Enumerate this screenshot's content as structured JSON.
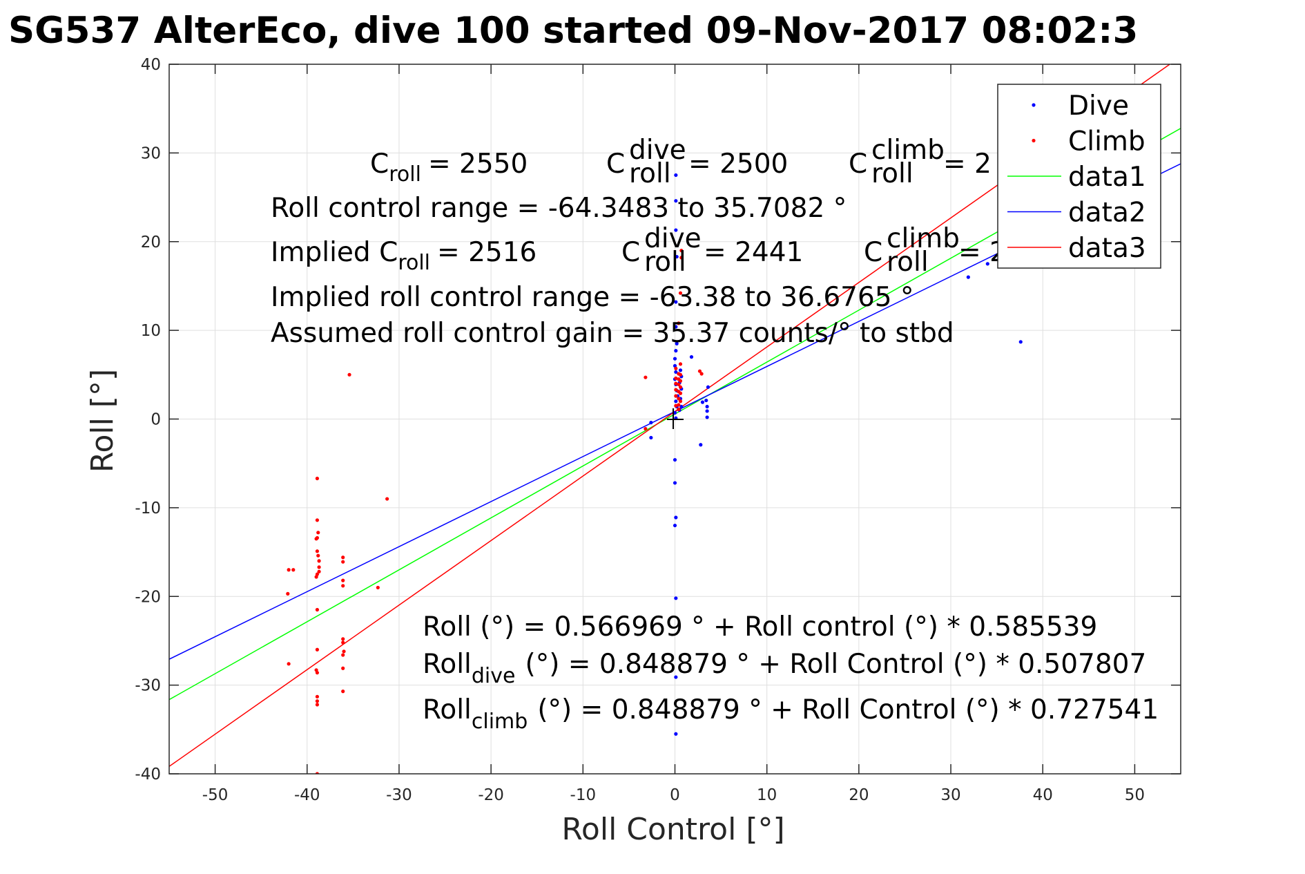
{
  "chart_data": {
    "type": "scatter",
    "title": "SG537 AlterEco, dive 100 started 09-Nov-2017 08:02:3",
    "xlabel": "Roll Control [°]",
    "ylabel": "Roll [°]",
    "xlim": [
      -55,
      55
    ],
    "ylim": [
      -40,
      40
    ],
    "xticks": [
      -50,
      -40,
      -30,
      -20,
      -10,
      0,
      10,
      20,
      30,
      40,
      50
    ],
    "yticks": [
      -40,
      -30,
      -20,
      -10,
      0,
      10,
      20,
      30,
      40
    ],
    "xtick_labels": [
      "-50",
      "-40",
      "-30",
      "-20",
      "-10",
      "0",
      "10",
      "20",
      "30",
      "40",
      "50"
    ],
    "ytick_labels": [
      "-40",
      "-30",
      "-20",
      "-10",
      "0",
      "10",
      "20",
      "30",
      "40"
    ],
    "grid": true,
    "legend_position": "top-right",
    "series": [
      {
        "name": "Dive",
        "kind": "points",
        "color": "#0000ff",
        "points": [
          [
            0.1,
            27.5
          ],
          [
            0.1,
            24.6
          ],
          [
            0.1,
            21.3
          ],
          [
            0.2,
            18.3
          ],
          [
            0.1,
            13.2
          ],
          [
            0.1,
            10.4
          ],
          [
            0.2,
            8.5
          ],
          [
            0.1,
            7.7
          ],
          [
            0.0,
            6.8
          ],
          [
            0.0,
            6.0
          ],
          [
            0.1,
            5.3
          ],
          [
            0.0,
            4.5
          ],
          [
            0.1,
            3.9
          ],
          [
            0.2,
            3.2
          ],
          [
            0.3,
            2.6
          ],
          [
            0.1,
            2.0
          ],
          [
            0.2,
            1.4
          ],
          [
            0.0,
            0.7
          ],
          [
            0.1,
            0.1
          ],
          [
            0.0,
            -4.6
          ],
          [
            0.0,
            -7.2
          ],
          [
            0.1,
            -11.1
          ],
          [
            0.0,
            -12.0
          ],
          [
            0.1,
            -20.2
          ],
          [
            0.1,
            -29.1
          ],
          [
            0.1,
            -35.5
          ],
          [
            0.6,
            5.5
          ],
          [
            0.7,
            4.8
          ],
          [
            0.5,
            4.1
          ],
          [
            0.7,
            3.4
          ],
          [
            0.6,
            2.3
          ],
          [
            0.7,
            1.4
          ],
          [
            0.5,
            1.0
          ],
          [
            1.8,
            7.0
          ],
          [
            3.6,
            3.6
          ],
          [
            3.4,
            2.1
          ],
          [
            3.5,
            1.4
          ],
          [
            3.5,
            0.9
          ],
          [
            3.5,
            0.2
          ],
          [
            3.0,
            1.9
          ],
          [
            2.8,
            -2.9
          ],
          [
            -2.6,
            -0.4
          ],
          [
            -2.6,
            -2.1
          ],
          [
            31.9,
            16.0
          ],
          [
            34.0,
            17.5
          ],
          [
            37.6,
            8.7
          ]
        ]
      },
      {
        "name": "Climb",
        "kind": "points",
        "color": "#ff0000",
        "points": [
          [
            -38.9,
            -6.7
          ],
          [
            -38.9,
            -11.4
          ],
          [
            -38.8,
            -12.8
          ],
          [
            -38.9,
            -13.4
          ],
          [
            -39.0,
            -13.5
          ],
          [
            -38.9,
            -14.9
          ],
          [
            -38.8,
            -15.4
          ],
          [
            -38.7,
            -16.0
          ],
          [
            -38.7,
            -16.7
          ],
          [
            -38.7,
            -17.2
          ],
          [
            -38.9,
            -17.5
          ],
          [
            -39.0,
            -17.8
          ],
          [
            -38.9,
            -21.5
          ],
          [
            -38.9,
            -26.0
          ],
          [
            -39.0,
            -28.3
          ],
          [
            -38.9,
            -28.6
          ],
          [
            -38.9,
            -31.3
          ],
          [
            -38.9,
            -31.8
          ],
          [
            -38.9,
            -32.2
          ],
          [
            -38.9,
            -40.0
          ],
          [
            -42.0,
            -17.0
          ],
          [
            -41.5,
            -17.0
          ],
          [
            -42.1,
            -19.7
          ],
          [
            -42.0,
            -27.6
          ],
          [
            -36.1,
            -15.6
          ],
          [
            -36.1,
            -16.1
          ],
          [
            -36.1,
            -18.2
          ],
          [
            -36.1,
            -18.8
          ],
          [
            -36.1,
            -24.8
          ],
          [
            -36.1,
            -25.2
          ],
          [
            -36.0,
            -26.2
          ],
          [
            -36.1,
            -26.6
          ],
          [
            -36.1,
            -28.1
          ],
          [
            -36.1,
            -30.7
          ],
          [
            -35.4,
            5.0
          ],
          [
            -31.3,
            -9.0
          ],
          [
            -32.3,
            -19.0
          ],
          [
            -3.2,
            4.7
          ],
          [
            -3.2,
            -1.1
          ],
          [
            2.7,
            5.4
          ],
          [
            2.9,
            5.1
          ],
          [
            0.7,
            19.0
          ],
          [
            0.7,
            18.2
          ],
          [
            0.6,
            14.2
          ],
          [
            0.4,
            10.8
          ],
          [
            0.6,
            6.2
          ],
          [
            0.1,
            5.7
          ],
          [
            0.4,
            5.1
          ],
          [
            0.6,
            5.0
          ],
          [
            0.1,
            4.6
          ],
          [
            0.4,
            4.5
          ],
          [
            0.6,
            4.3
          ],
          [
            0.1,
            4.0
          ],
          [
            0.4,
            3.9
          ],
          [
            0.6,
            3.6
          ],
          [
            0.1,
            3.3
          ],
          [
            0.4,
            3.1
          ],
          [
            0.6,
            2.9
          ],
          [
            0.1,
            2.6
          ],
          [
            0.4,
            2.3
          ],
          [
            0.6,
            2.0
          ],
          [
            0.4,
            1.6
          ],
          [
            0.1,
            1.5
          ],
          [
            0.4,
            1.1
          ]
        ]
      },
      {
        "name": "data1",
        "kind": "line",
        "color": "#00ff00",
        "intercept": 0.566969,
        "slope": 0.585539
      },
      {
        "name": "data2",
        "kind": "line",
        "color": "#0000ff",
        "intercept": 0.848879,
        "slope": 0.507807
      },
      {
        "name": "data3",
        "kind": "line",
        "color": "#ff0000",
        "intercept": 0.848879,
        "slope": 0.727541
      }
    ],
    "origin_marker": "+",
    "annotations": {
      "croll_base": "C",
      "croll_sub": "roll",
      "croll_value": "= 2550",
      "croll_dive_sup": "dive",
      "croll_dive_value": "= 2500",
      "croll_climb_sup": "climb",
      "croll_climb_value": "= 2",
      "range_line": "Roll control range = -64.3483 to 35.7082 °",
      "implied_prefix": "Implied C",
      "implied_value": "= 2516",
      "implied_dive_value": "= 2441",
      "implied_climb_value": "= 2",
      "implied_range_line": "Implied roll control range = -63.38 to 36.6765 °",
      "gain_line": "Assumed roll control gain = 35.37 counts/° to stbd",
      "fit_line": "Roll (°) = 0.566969 ° + Roll control (°) * 0.585539",
      "fit_dive_base": "Roll",
      "fit_dive_sub": "dive",
      "fit_dive_rest": "(°) = 0.848879 ° + Roll Control (°) * 0.507807",
      "fit_climb_base": "Roll",
      "fit_climb_sub": "climb",
      "fit_climb_rest": "(°) = 0.848879 ° + Roll Control (°) * 0.727541"
    }
  }
}
